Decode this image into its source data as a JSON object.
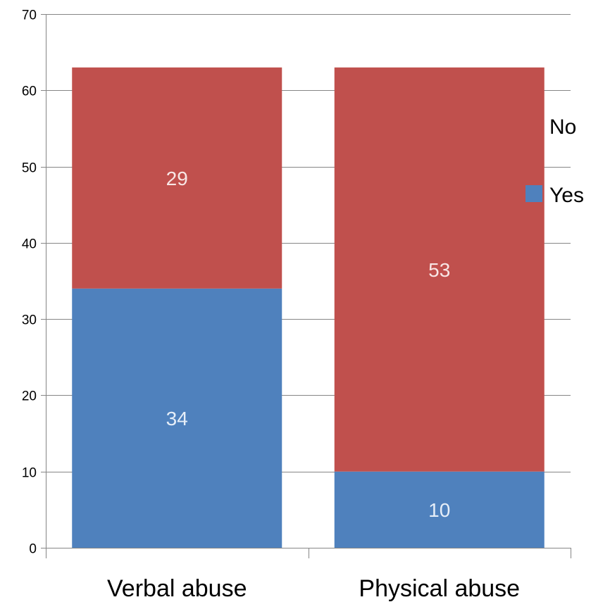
{
  "chart_data": {
    "type": "bar",
    "stacked": true,
    "categories": [
      "Verbal abuse",
      "Physical abuse"
    ],
    "series": [
      {
        "name": "Yes",
        "values": [
          34,
          10
        ],
        "color": "#4F81BD",
        "label_color": "#E6EEF8"
      },
      {
        "name": "No",
        "values": [
          29,
          53
        ],
        "color": "#C0504D",
        "label_color": "#F8E6E5"
      }
    ],
    "ylim": [
      0,
      70
    ],
    "yticks": [
      0,
      10,
      20,
      30,
      40,
      50,
      60,
      70
    ],
    "ytick_labels": [
      "0",
      "10",
      "20",
      "30",
      "40",
      "50",
      "60",
      "70"
    ],
    "grid": true,
    "legend_position": "right",
    "data_labels": true,
    "title": "",
    "xlabel": "",
    "ylabel": ""
  }
}
